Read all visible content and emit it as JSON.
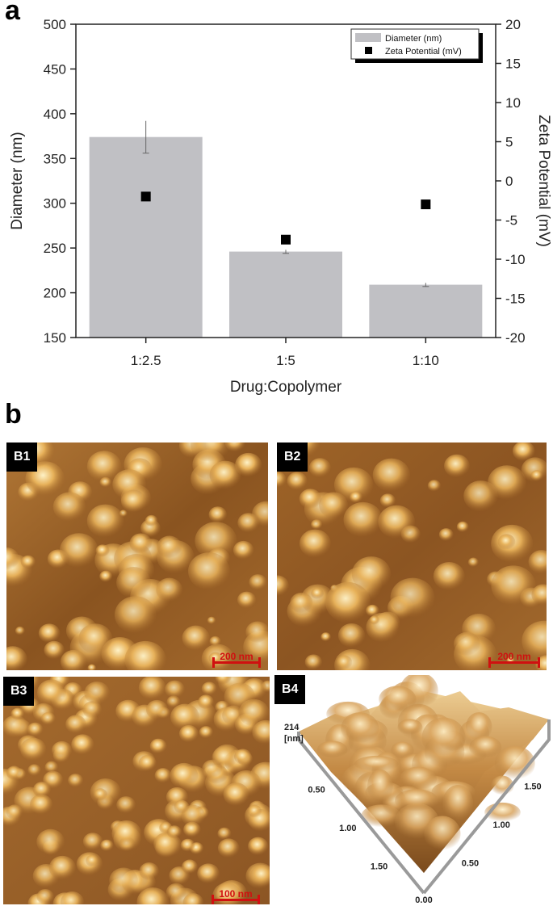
{
  "panel_a": {
    "letter": "a"
  },
  "panel_b": {
    "letter": "b"
  },
  "chart_data": {
    "type": "bar",
    "categories": [
      "1:2.5",
      "1:5",
      "1:10"
    ],
    "xlabel": "Drug:Copolymer",
    "ylabel": "Diameter (nm)",
    "y2label": "Zeta Potential (mV)",
    "ylim": [
      150,
      500
    ],
    "y2lim": [
      -20,
      20
    ],
    "yticks": [
      150,
      200,
      250,
      300,
      350,
      400,
      450,
      500
    ],
    "y2ticks": [
      -20,
      -15,
      -10,
      -5,
      0,
      5,
      10,
      15,
      20
    ],
    "series": [
      {
        "name": "Diameter (nm)",
        "type": "bar",
        "axis": "left",
        "values": [
          374,
          246,
          209
        ],
        "errors": [
          18,
          2,
          2
        ],
        "color": "#c0c0c4"
      },
      {
        "name": "Zeta Potential (mV)",
        "type": "scatter",
        "axis": "right",
        "values": [
          -2.0,
          -7.5,
          -3.0
        ],
        "errors": [
          0.3,
          0.5,
          0.3
        ],
        "color": "#000000"
      }
    ],
    "legend": "top-right",
    "grid": false
  },
  "afm": {
    "b1": {
      "label": "B1",
      "scale": "200 nm"
    },
    "b2": {
      "label": "B2",
      "scale": "200 nm"
    },
    "b3": {
      "label": "B3",
      "scale": "100 nm"
    },
    "b4": {
      "label": "B4",
      "zmax": "214",
      "zunit": "[nm]",
      "xticks": [
        "0.00",
        "0.50",
        "1.00",
        "1.50"
      ],
      "yticks": [
        "0.50",
        "1.00",
        "1.50"
      ]
    }
  }
}
